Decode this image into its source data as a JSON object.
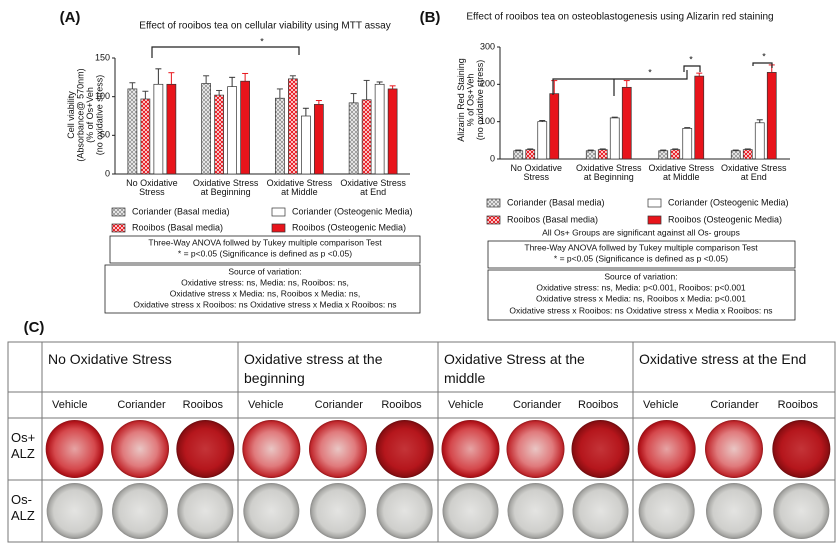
{
  "panel_labels": [
    "(A)",
    "(B)",
    "(C)"
  ],
  "chart_data": [
    {
      "type": "bar",
      "title": "Effect of rooibos tea on cellular viability using MTT assay",
      "y_label": "Cell viability\n(Absorbance@ 570nm)\n(% of Os+Veh\n(no oxidative stress)",
      "categories": [
        "No Oxidative\nStress",
        "Oxidative Stress\nat Beginning",
        "Oxidative Stress\nat Middle",
        "Oxidative Stress\nat End"
      ],
      "series": [
        {
          "name": "Coriander (Basal media)",
          "color": "#9a9a9a",
          "hatch": true,
          "values": [
            110,
            117,
            98,
            92
          ],
          "errors": [
            8,
            10,
            12,
            12
          ]
        },
        {
          "name": "Rooibos (Basal media)",
          "color": "#e8141b",
          "hatch": true,
          "values": [
            97,
            102,
            123,
            96
          ],
          "errors": [
            10,
            6,
            4,
            25
          ]
        },
        {
          "name": "Coriander (Osteogenic Media)",
          "color": "#ffffff",
          "hatch": false,
          "values": [
            116,
            113,
            75,
            116
          ],
          "errors": [
            20,
            12,
            10,
            3
          ]
        },
        {
          "name": "Rooibos (Osteogenic Media)",
          "color": "#e8141b",
          "hatch": false,
          "values": [
            116,
            120,
            90,
            110
          ],
          "errors": [
            15,
            10,
            5,
            4
          ]
        }
      ],
      "ylim": [
        0,
        150
      ],
      "yticks": [
        0,
        50,
        100,
        150
      ],
      "annotations": [
        "*"
      ],
      "notes": [
        "Three-Way ANOVA follwed by Tukey multiple comparison Test",
        "* = p<0.05 (Significance is defined as  p <0.05)",
        "Source of variation:",
        "Oxidative stress: ns, Media: ns, Rooibos: ns,",
        "Oxidative stress x Media: ns, Rooibos x Media: ns,",
        "Oxidative stress x Rooibos: ns Oxidative stress x Media x Rooibos: ns"
      ]
    },
    {
      "type": "bar",
      "title": "Effect of rooibos tea on osteoblastogenesis using  Alizarin red staining",
      "y_label": "Alizarin Red Staining\n% of Os+Veh\n(no oxidative stress)",
      "categories": [
        "No Oxidative\nStress",
        "Oxidative Stress\nat Beginning",
        "Oxidative Stress\nat Middle",
        "Oxidative Stress\nat End"
      ],
      "series": [
        {
          "name": "Coriander (Basal media)",
          "color": "#9a9a9a",
          "hatch": true,
          "values": [
            22,
            22,
            22,
            22
          ],
          "errors": [
            2,
            2,
            2,
            2
          ]
        },
        {
          "name": "Rooibos (Basal media)",
          "color": "#e8141b",
          "hatch": true,
          "values": [
            25,
            25,
            25,
            25
          ],
          "errors": [
            2,
            2,
            2,
            2
          ]
        },
        {
          "name": "Coriander (Osteogenic Media)",
          "color": "#ffffff",
          "hatch": false,
          "values": [
            100,
            110,
            82,
            97
          ],
          "errors": [
            3,
            2,
            2,
            8
          ]
        },
        {
          "name": "Rooibos (Osteogenic Media)",
          "color": "#e8141b",
          "hatch": false,
          "values": [
            175,
            192,
            222,
            232
          ],
          "errors": [
            35,
            18,
            8,
            20
          ]
        }
      ],
      "ylim": [
        0,
        300
      ],
      "yticks": [
        0,
        100,
        200,
        300
      ],
      "annotations": [
        "*",
        "*",
        "*"
      ],
      "notes": [
        "All Os+ Groups are significant against all Os- groups",
        "Three-Way ANOVA follwed by Tukey multiple comparison Test",
        "* = p<0.05 (Significance is defined as  p <0.05)",
        "Source of variation:",
        "Oxidative stress: ns, Media: p<0.001, Rooibos: p<0.001",
        "Oxidative stress x Media: ns, Rooibos x Media: p<0.001",
        "Oxidative stress x Rooibos: ns Oxidative stress x Media x Rooibos: ns"
      ]
    }
  ],
  "table": {
    "groups": [
      "No Oxidative Stress",
      "Oxidative stress at the\nbeginning",
      "Oxidative Stress at the\nmiddle",
      "Oxidative stress at the End"
    ],
    "columns": [
      "Vehicle",
      "Coriander",
      "Rooibos",
      "Vehicle",
      "Coriander",
      "Rooibos",
      "Vehicle",
      "Coriander",
      "Rooibos",
      "Vehicle",
      "Coriander",
      "Rooibos"
    ],
    "rows": [
      "Os+\nALZ",
      "Os-\nALZ"
    ]
  }
}
